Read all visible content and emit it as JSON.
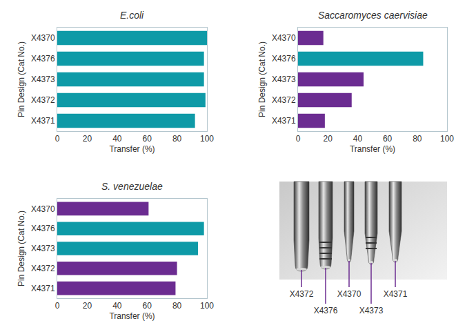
{
  "chart_data": [
    {
      "type": "bar",
      "title": "E.coli",
      "orientation": "horizontal",
      "categories": [
        "X4371",
        "X4372",
        "X4373",
        "X4376",
        "X4370"
      ],
      "values": [
        92,
        99,
        98,
        98,
        100
      ],
      "color": "#0e9aa7",
      "xlim": [
        0,
        100
      ],
      "xticks": [
        0,
        20,
        40,
        60,
        80,
        100
      ],
      "x_label": "Transfer (%)",
      "y_label": "Pin Design (Cat No.)",
      "grid": false
    },
    {
      "type": "bar",
      "title": "Saccaromyces caervisiae",
      "orientation": "horizontal",
      "categories": [
        "X4371",
        "X4372",
        "X4373",
        "X4376",
        "X4370"
      ],
      "values": [
        18,
        36,
        44,
        84,
        17
      ],
      "colors": [
        "#6b2c91",
        "#6b2c91",
        "#6b2c91",
        "#0e9aa7",
        "#6b2c91"
      ],
      "xlim": [
        0,
        100
      ],
      "xticks": [
        0,
        20,
        40,
        60,
        80,
        100
      ],
      "x_label": "Transfer (%)",
      "y_label": "Pin Design (Cat No.)",
      "grid": false
    },
    {
      "type": "bar",
      "title": "S. venezuelae",
      "orientation": "horizontal",
      "categories": [
        "X4371",
        "X4372",
        "X4373",
        "X4376",
        "X4370"
      ],
      "values": [
        79,
        80,
        94,
        98,
        61
      ],
      "colors": [
        "#6b2c91",
        "#6b2c91",
        "#0e9aa7",
        "#0e9aa7",
        "#6b2c91"
      ],
      "xlim": [
        0,
        100
      ],
      "xticks": [
        0,
        20,
        40,
        60,
        80,
        100
      ],
      "x_label": "Transfer (%)",
      "y_label": "Pin Design (Cat No.)",
      "grid": false
    }
  ],
  "image": {
    "labels": [
      "X4372",
      "X4376",
      "X4370",
      "X4373",
      "X4371"
    ]
  }
}
